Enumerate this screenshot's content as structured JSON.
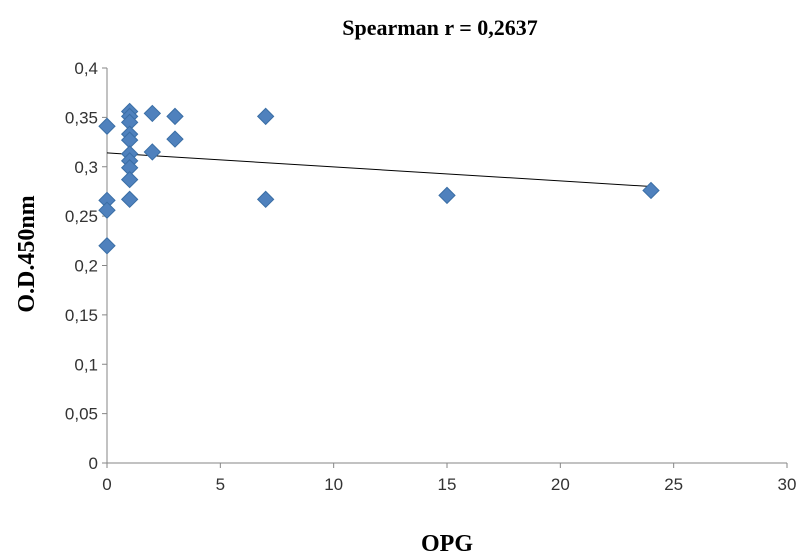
{
  "chart_data": {
    "type": "scatter",
    "title": "Spearman  r = 0,2637",
    "xlabel": "OPG",
    "ylabel": "O.D.450nm",
    "xlim": [
      0,
      30
    ],
    "ylim": [
      0,
      0.4
    ],
    "x_ticks": [
      0,
      5,
      10,
      15,
      20,
      25,
      30
    ],
    "y_ticks": [
      0,
      0.05,
      0.1,
      0.15,
      0.2,
      0.25,
      0.3,
      0.35,
      0.4
    ],
    "x_tick_labels": [
      "0",
      "5",
      "10",
      "15",
      "20",
      "25",
      "30"
    ],
    "y_tick_labels": [
      "0",
      "0,05",
      "0,1",
      "0,15",
      "0,2",
      "0,25",
      "0,3",
      "0,35",
      "0,4"
    ],
    "grid": false,
    "legend": "none",
    "marker_color": "#4F81BD",
    "marker_stroke": "#3A6EA5",
    "trendline_color": "#000000",
    "points": [
      {
        "x": 0,
        "y": 0.341
      },
      {
        "x": 0,
        "y": 0.266
      },
      {
        "x": 0,
        "y": 0.256
      },
      {
        "x": 0,
        "y": 0.22
      },
      {
        "x": 1,
        "y": 0.356
      },
      {
        "x": 1,
        "y": 0.351
      },
      {
        "x": 1,
        "y": 0.345
      },
      {
        "x": 1,
        "y": 0.333
      },
      {
        "x": 1,
        "y": 0.327
      },
      {
        "x": 1,
        "y": 0.313
      },
      {
        "x": 1,
        "y": 0.306
      },
      {
        "x": 1,
        "y": 0.299
      },
      {
        "x": 1,
        "y": 0.287
      },
      {
        "x": 1,
        "y": 0.267
      },
      {
        "x": 2,
        "y": 0.354
      },
      {
        "x": 2,
        "y": 0.315
      },
      {
        "x": 3,
        "y": 0.351
      },
      {
        "x": 3,
        "y": 0.328
      },
      {
        "x": 7,
        "y": 0.351
      },
      {
        "x": 7,
        "y": 0.267
      },
      {
        "x": 15,
        "y": 0.271
      },
      {
        "x": 24,
        "y": 0.276
      }
    ],
    "trendline": {
      "x": [
        0,
        24
      ],
      "y": [
        0.314,
        0.28
      ]
    }
  }
}
